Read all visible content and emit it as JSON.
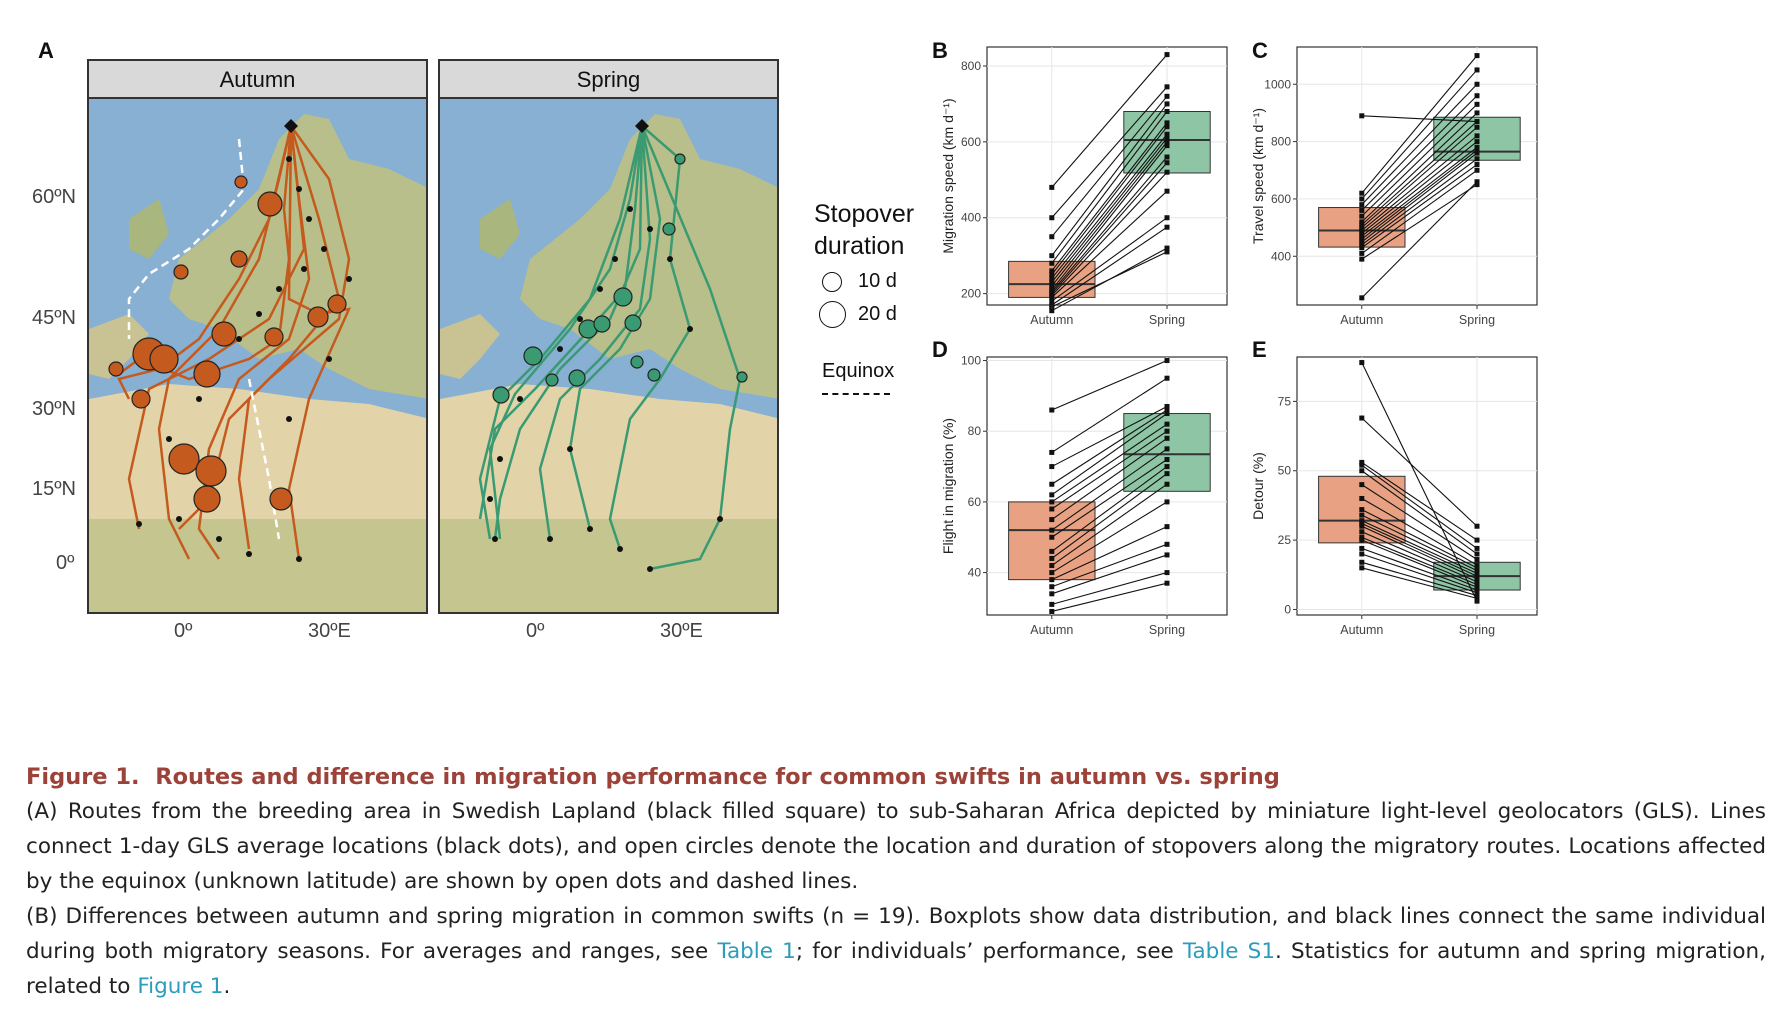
{
  "panels": {
    "a": "A",
    "b": "B",
    "c": "C",
    "d": "D",
    "e": "E"
  },
  "maps": {
    "facets": [
      "Autumn",
      "Spring"
    ],
    "lat_ticks": [
      "60ºN",
      "45ºN",
      "30ºN",
      "15ºN",
      "0º"
    ],
    "lon_ticks": [
      "0º",
      "30ºE"
    ],
    "colors": {
      "autumn": "#c45a1e",
      "spring": "#3a9a72",
      "ocean": "#87b0d2",
      "land": "#c9c393",
      "desert": "#e2d4a8"
    }
  },
  "legend": {
    "title_line1": "Stopover",
    "title_line2": "duration",
    "items": [
      "10 d",
      "20 d"
    ],
    "equinox_label": "Equinox"
  },
  "chart_data": [
    {
      "panel": "B",
      "type": "boxplot",
      "categories": [
        "Autumn",
        "Spring"
      ],
      "ylabel": "Migration speed (km d⁻¹)",
      "yticks": [
        "200",
        "400",
        "600",
        "800"
      ],
      "ylim": [
        170,
        850
      ],
      "boxes": [
        {
          "name": "Autumn",
          "q1": 190,
          "median": 225,
          "q3": 285,
          "color": "#e8a283"
        },
        {
          "name": "Spring",
          "q1": 518,
          "median": 605,
          "q3": 680,
          "color": "#8ec5a5"
        }
      ],
      "pairs": [
        [
          155,
          320
        ],
        [
          165,
          310
        ],
        [
          170,
          375
        ],
        [
          180,
          400
        ],
        [
          190,
          470
        ],
        [
          195,
          520
        ],
        [
          200,
          545
        ],
        [
          205,
          560
        ],
        [
          210,
          590
        ],
        [
          220,
          600
        ],
        [
          230,
          610
        ],
        [
          240,
          620
        ],
        [
          250,
          640
        ],
        [
          260,
          650
        ],
        [
          280,
          680
        ],
        [
          300,
          700
        ],
        [
          350,
          720
        ],
        [
          400,
          745
        ],
        [
          480,
          830
        ]
      ]
    },
    {
      "panel": "C",
      "type": "boxplot",
      "categories": [
        "Autumn",
        "Spring"
      ],
      "ylabel": "Travel speed (km d⁻¹)",
      "yticks": [
        "400",
        "600",
        "800",
        "1000"
      ],
      "ylim": [
        230,
        1130
      ],
      "boxes": [
        {
          "name": "Autumn",
          "q1": 432,
          "median": 490,
          "q3": 570,
          "color": "#e8a283"
        },
        {
          "name": "Spring",
          "q1": 735,
          "median": 765,
          "q3": 885,
          "color": "#8ec5a5"
        }
      ],
      "pairs": [
        [
          255,
          660
        ],
        [
          390,
          650
        ],
        [
          410,
          700
        ],
        [
          430,
          720
        ],
        [
          440,
          740
        ],
        [
          450,
          760
        ],
        [
          460,
          770
        ],
        [
          470,
          780
        ],
        [
          480,
          800
        ],
        [
          490,
          820
        ],
        [
          500,
          850
        ],
        [
          510,
          870
        ],
        [
          520,
          900
        ],
        [
          540,
          930
        ],
        [
          560,
          960
        ],
        [
          580,
          1000
        ],
        [
          600,
          1050
        ],
        [
          620,
          1100
        ],
        [
          890,
          870
        ]
      ]
    },
    {
      "panel": "D",
      "type": "boxplot",
      "categories": [
        "Autumn",
        "Spring"
      ],
      "ylabel": "Flight in migration (%)",
      "yticks": [
        "40",
        "60",
        "80",
        "100"
      ],
      "ylim": [
        28,
        101
      ],
      "boxes": [
        {
          "name": "Autumn",
          "q1": 38,
          "median": 52,
          "q3": 60,
          "color": "#e8a283"
        },
        {
          "name": "Spring",
          "q1": 63,
          "median": 73.5,
          "q3": 85,
          "color": "#8ec5a5"
        }
      ],
      "pairs": [
        [
          29,
          37
        ],
        [
          31,
          40
        ],
        [
          34,
          45
        ],
        [
          36,
          48
        ],
        [
          38,
          53
        ],
        [
          40,
          60
        ],
        [
          42,
          65
        ],
        [
          44,
          68
        ],
        [
          46,
          70
        ],
        [
          50,
          72
        ],
        [
          52,
          75
        ],
        [
          55,
          78
        ],
        [
          58,
          80
        ],
        [
          60,
          82
        ],
        [
          62,
          85
        ],
        [
          65,
          86
        ],
        [
          70,
          87
        ],
        [
          74,
          95
        ],
        [
          86,
          100
        ]
      ]
    },
    {
      "panel": "E",
      "type": "boxplot",
      "categories": [
        "Autumn",
        "Spring"
      ],
      "ylabel": "Detour (%)",
      "yticks": [
        "0",
        "25",
        "50",
        "75"
      ],
      "ylim": [
        -2,
        91
      ],
      "boxes": [
        {
          "name": "Autumn",
          "q1": 24,
          "median": 32,
          "q3": 48,
          "color": "#e8a283"
        },
        {
          "name": "Spring",
          "q1": 7,
          "median": 12,
          "q3": 17,
          "color": "#8ec5a5"
        }
      ],
      "pairs": [
        [
          15,
          4
        ],
        [
          17,
          5
        ],
        [
          20,
          6
        ],
        [
          22,
          7
        ],
        [
          25,
          8
        ],
        [
          26,
          9
        ],
        [
          28,
          10
        ],
        [
          30,
          11
        ],
        [
          31,
          12
        ],
        [
          32,
          13
        ],
        [
          34,
          14
        ],
        [
          36,
          15
        ],
        [
          40,
          16
        ],
        [
          45,
          18
        ],
        [
          50,
          20
        ],
        [
          52,
          22
        ],
        [
          53,
          25
        ],
        [
          69,
          30
        ],
        [
          89,
          3
        ]
      ]
    }
  ],
  "caption": {
    "title": "Figure 1.  Routes and difference in migration performance for common swifts in autumn vs. spring",
    "para_a": "(A) Routes from the breeding area in Swedish Lapland (black filled square) to sub-Saharan Africa depicted by miniature light-level geolocators (GLS). Lines connect 1-day GLS average locations (black dots), and open circles denote the location and duration of stopovers along the migratory routes. Locations affected by the equinox (unknown latitude) are shown by open dots and dashed lines.",
    "para_b_1": "(B) Differences between autumn and spring migration in common swifts (n = 19). Boxplots show data distribution, and black lines connect the same individual during both migratory seasons. For averages and ranges, see ",
    "link_table1": "Table 1",
    "para_b_2": "; for individuals’ performance, see ",
    "link_tableS1": "Table S1",
    "para_b_3": ". Statistics for autumn and spring migration, related to ",
    "link_figure1": "Figure 1",
    "para_b_4": "."
  }
}
